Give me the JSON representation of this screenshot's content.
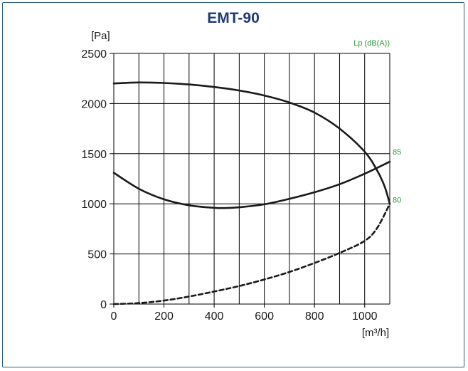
{
  "chart_data": {
    "type": "line",
    "title": "EMT-90",
    "ylabel": "[Pa]",
    "xlabel": "[m³/h]",
    "secondary_label": "Lp (dB(A))",
    "xlim": [
      0,
      1100
    ],
    "ylim": [
      0,
      2500
    ],
    "x_ticks": [
      0,
      200,
      400,
      600,
      800,
      1000
    ],
    "y_ticks": [
      0,
      500,
      1000,
      1500,
      2000,
      2500
    ],
    "grid": true,
    "series": [
      {
        "style": "solid",
        "x": [
          0,
          100,
          200,
          300,
          400,
          500,
          600,
          700,
          800,
          900,
          1000,
          1050,
          1080,
          1100
        ],
        "y": [
          2200,
          2210,
          2205,
          2190,
          2165,
          2130,
          2080,
          2010,
          1910,
          1750,
          1520,
          1330,
          1170,
          1000
        ]
      },
      {
        "style": "solid",
        "x": [
          0,
          100,
          200,
          300,
          400,
          450,
          500,
          600,
          700,
          800,
          900,
          1000,
          1100
        ],
        "y": [
          1310,
          1150,
          1045,
          985,
          960,
          958,
          965,
          995,
          1050,
          1115,
          1195,
          1300,
          1420
        ]
      },
      {
        "style": "dashed",
        "x": [
          0,
          100,
          200,
          300,
          400,
          500,
          600,
          700,
          800,
          900,
          1000,
          1050,
          1100
        ],
        "y": [
          0,
          10,
          35,
          75,
          125,
          180,
          245,
          320,
          410,
          510,
          630,
          760,
          1000
        ]
      }
    ],
    "annotations": [
      {
        "text": "85",
        "x": 1100,
        "y": 1520
      },
      {
        "text": "80",
        "x": 1100,
        "y": 1040
      }
    ]
  }
}
